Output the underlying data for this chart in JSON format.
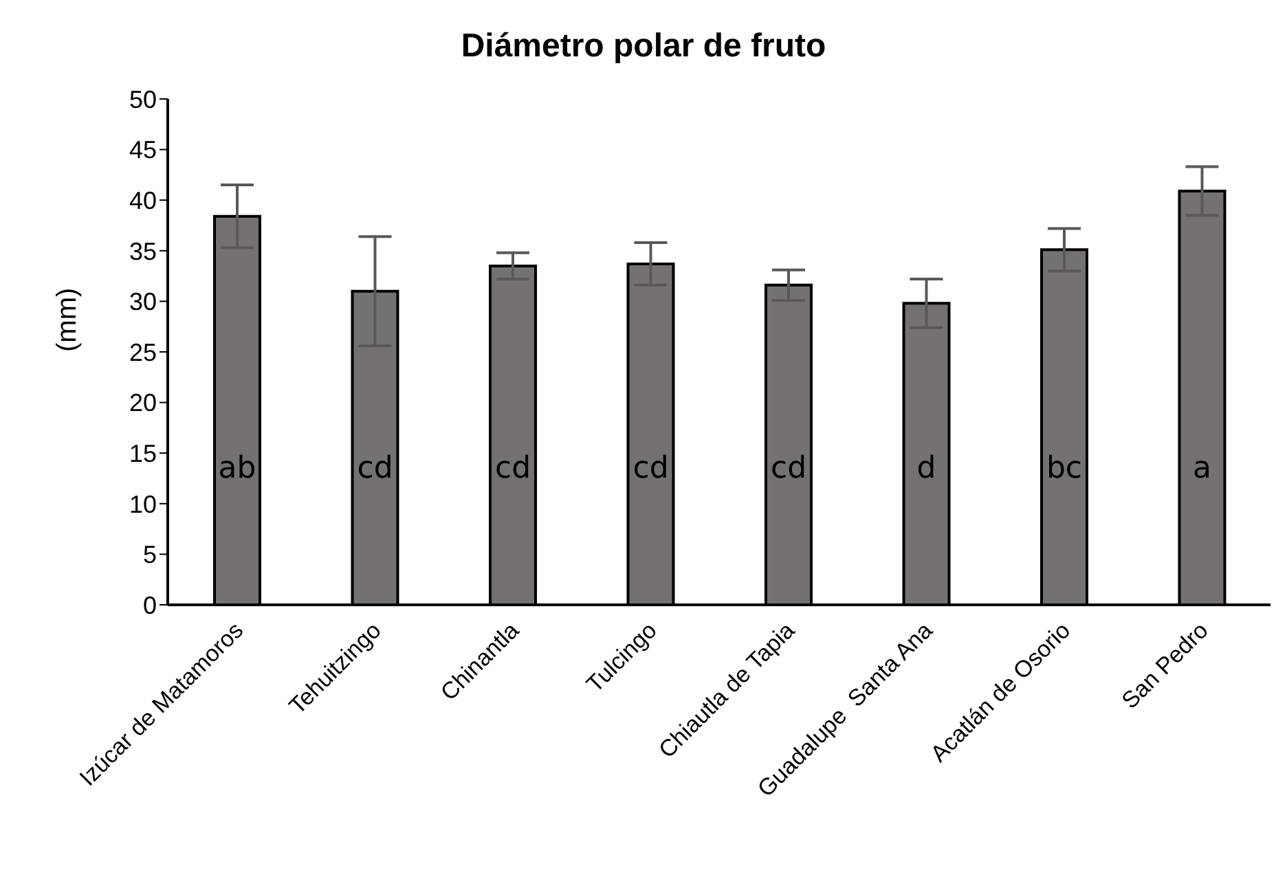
{
  "chart_data": {
    "type": "bar",
    "title": "Diámetro polar de fruto",
    "ylabel": "(mm)",
    "categories": [
      "Izúcar de Matamoros",
      "Tehuitzingo",
      "Chinantla",
      "Tulcingo",
      "Chiautla de Tapia",
      "Guadalupe  Santa Ana",
      "Acatlán de Osorio",
      "San Pedro"
    ],
    "values": [
      38.4,
      31.0,
      33.5,
      33.7,
      31.6,
      29.8,
      35.1,
      40.9
    ],
    "errors": [
      3.1,
      5.4,
      1.3,
      2.1,
      1.5,
      2.4,
      2.1,
      2.4
    ],
    "color": "#757170",
    "ylim": [
      0,
      50
    ],
    "yticks": [
      0,
      5,
      10,
      15,
      20,
      25,
      30,
      35,
      40,
      45,
      50
    ],
    "grid": false,
    "legend": false,
    "annotations": [
      "ab",
      "cd",
      "cd",
      "cd",
      "cd",
      "d",
      "bc",
      "a"
    ]
  }
}
